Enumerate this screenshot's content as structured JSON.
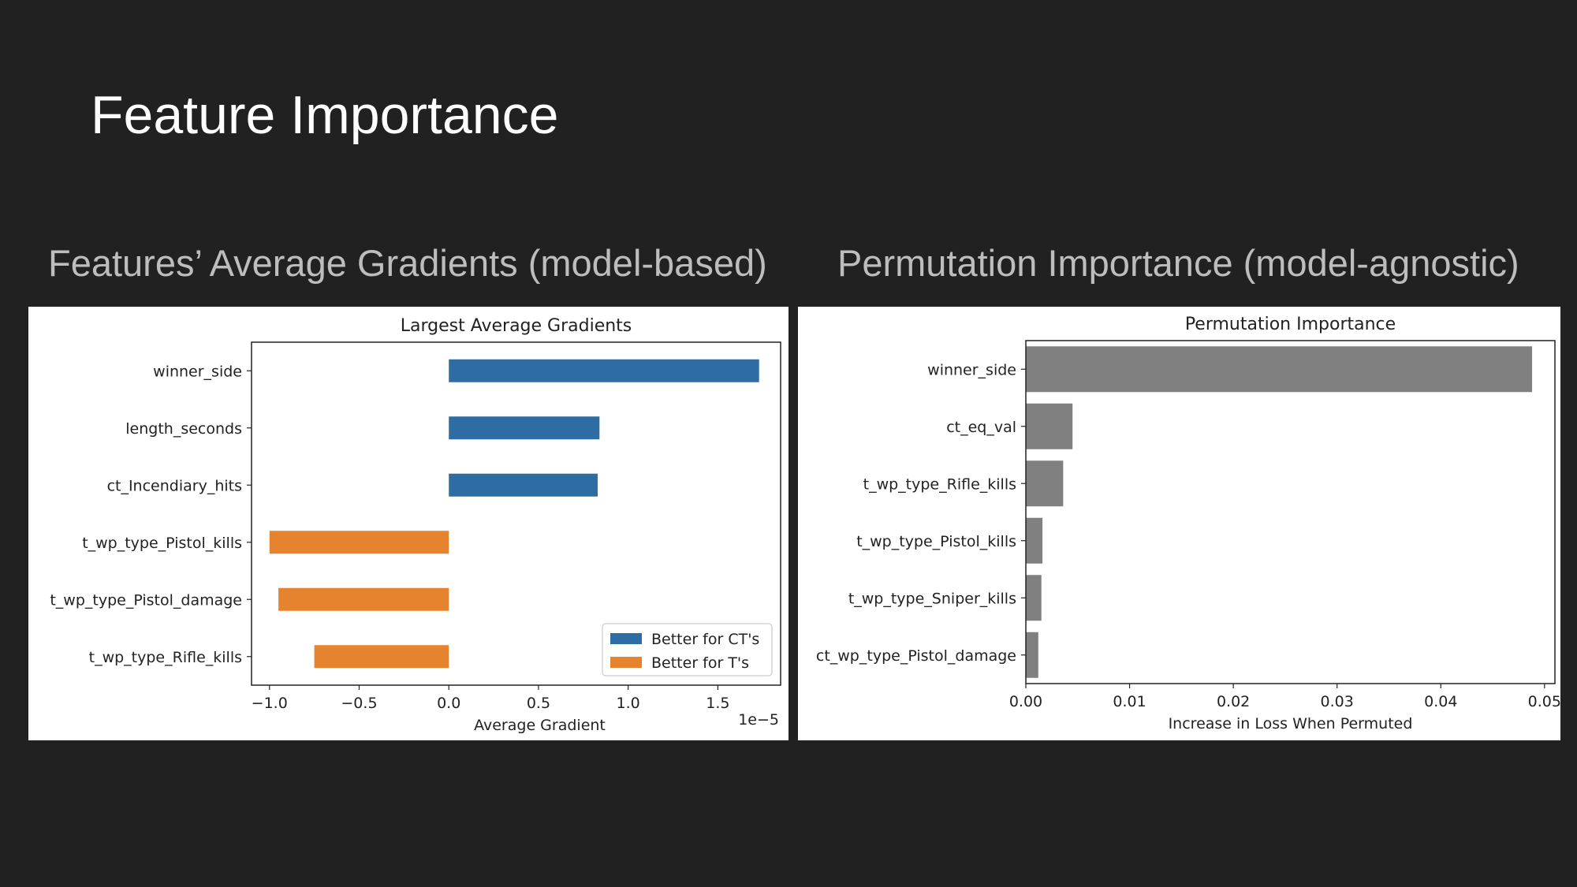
{
  "slide": {
    "title": "Feature Importance",
    "left_subtitle": "Features’ Average Gradients (model-based)",
    "right_subtitle": "Permutation Importance (model-agnostic)"
  },
  "chart_data": [
    {
      "type": "bar",
      "orientation": "horizontal",
      "title": "Largest Average Gradients",
      "xlabel": "Average Gradient",
      "ylabel": "",
      "x_offset_text": "1e−5",
      "x_scale": 1e-05,
      "xlim": [
        -1.1,
        1.85
      ],
      "xticks": [
        -1.0,
        -0.5,
        0.0,
        0.5,
        1.0,
        1.5
      ],
      "xtick_labels": [
        "−1.0",
        "−0.5",
        "0.0",
        "0.5",
        "1.0",
        "1.5"
      ],
      "categories": [
        "winner_side",
        "length_seconds",
        "ct_Incendiary_hits",
        "t_wp_type_Pistol_kills",
        "t_wp_type_Pistol_damage",
        "t_wp_type_Rifle_kills"
      ],
      "values": [
        1.73e-05,
        8.4e-06,
        8.3e-06,
        -1e-05,
        -9.5e-06,
        -7.5e-06
      ],
      "legend": [
        {
          "label": "Better for CT's",
          "color": "#2e6da4"
        },
        {
          "label": "Better for T's",
          "color": "#e5832f"
        }
      ],
      "legend_position": "lower right",
      "grid": false
    },
    {
      "type": "bar",
      "orientation": "horizontal",
      "title": "Permutation Importance",
      "xlabel": "Increase in Loss When Permuted",
      "ylabel": "",
      "xlim": [
        0,
        0.051
      ],
      "xticks": [
        0.0,
        0.01,
        0.02,
        0.03,
        0.04,
        0.05
      ],
      "xtick_labels": [
        "0.00",
        "0.01",
        "0.02",
        "0.03",
        "0.04",
        "0.05"
      ],
      "categories": [
        "winner_side",
        "ct_eq_val",
        "t_wp_type_Rifle_kills",
        "t_wp_type_Pistol_kills",
        "t_wp_type_Sniper_kills",
        "ct_wp_type_Pistol_damage"
      ],
      "values": [
        0.0488,
        0.0045,
        0.0036,
        0.0016,
        0.0015,
        0.0012
      ],
      "bar_color": "#808080",
      "grid": false
    }
  ]
}
